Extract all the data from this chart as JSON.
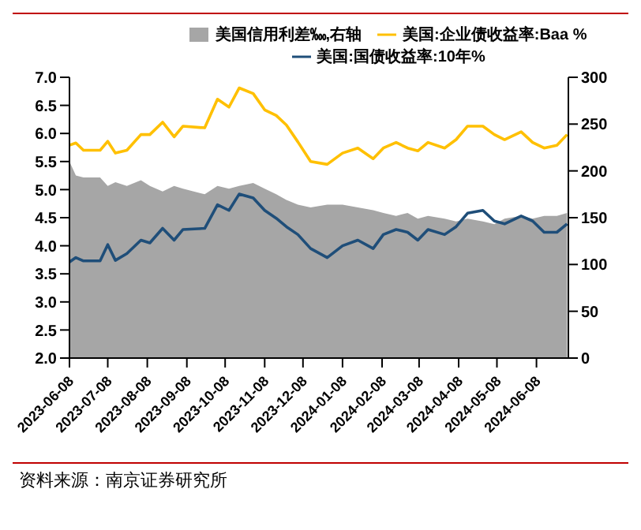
{
  "chart_data": {
    "type": "line",
    "x": [
      "2023-06-08",
      "2023-06-13",
      "2023-06-19",
      "2023-07-02",
      "2023-07-08",
      "2023-07-14",
      "2023-07-23",
      "2023-08-03",
      "2023-08-10",
      "2023-08-20",
      "2023-08-29",
      "2023-09-05",
      "2023-09-22",
      "2023-10-02",
      "2023-10-11",
      "2023-10-19",
      "2023-10-30",
      "2023-11-08",
      "2023-11-17",
      "2023-11-25",
      "2023-12-04",
      "2023-12-14",
      "2023-12-27",
      "2024-01-08",
      "2024-01-20",
      "2024-02-01",
      "2024-02-09",
      "2024-02-19",
      "2024-02-28",
      "2024-03-07",
      "2024-03-15",
      "2024-03-28",
      "2024-04-06",
      "2024-04-15",
      "2024-04-27",
      "2024-05-06",
      "2024-05-14",
      "2024-05-27",
      "2024-06-05",
      "2024-06-14",
      "2024-06-24",
      "2024-07-02"
    ],
    "series": [
      {
        "name": "美国信用利差‱,右轴",
        "type": "area",
        "axis": "y2",
        "color": "#a6a6a6",
        "values": [
          210,
          195,
          193,
          193,
          184,
          188,
          184,
          190,
          184,
          178,
          184,
          181,
          175,
          184,
          181,
          184,
          187,
          181,
          175,
          169,
          164,
          161,
          164,
          164,
          161,
          158,
          155,
          152,
          155,
          149,
          152,
          149,
          146,
          149,
          146,
          143,
          149,
          152,
          149,
          152,
          152,
          155
        ]
      },
      {
        "name": "美国:企业债收益率:Baa %",
        "color": "#ffc000",
        "values": [
          5.79,
          5.83,
          5.7,
          5.7,
          5.86,
          5.65,
          5.7,
          5.98,
          5.98,
          6.2,
          5.94,
          6.13,
          6.1,
          6.61,
          6.47,
          6.81,
          6.71,
          6.42,
          6.32,
          6.15,
          5.85,
          5.5,
          5.45,
          5.65,
          5.74,
          5.55,
          5.74,
          5.84,
          5.74,
          5.69,
          5.84,
          5.74,
          5.89,
          6.13,
          6.13,
          5.98,
          5.89,
          6.03,
          5.84,
          5.74,
          5.79,
          5.98
        ]
      },
      {
        "name": "美国:国债收益率:10年%",
        "color": "#1f4e79",
        "values": [
          3.71,
          3.79,
          3.73,
          3.73,
          4.02,
          3.74,
          3.86,
          4.1,
          4.05,
          4.31,
          4.1,
          4.29,
          4.31,
          4.73,
          4.63,
          4.92,
          4.85,
          4.63,
          4.49,
          4.34,
          4.2,
          3.95,
          3.79,
          4.0,
          4.1,
          3.95,
          4.2,
          4.29,
          4.24,
          4.1,
          4.29,
          4.2,
          4.34,
          4.58,
          4.63,
          4.44,
          4.39,
          4.53,
          4.44,
          4.24,
          4.24,
          4.39
        ]
      }
    ],
    "xlim": [
      "2023-06-08",
      "2024-07-03"
    ],
    "xticks": [
      "2023-06-08",
      "2023-07-08",
      "2023-08-08",
      "2023-09-08",
      "2023-10-08",
      "2023-11-08",
      "2023-12-08",
      "2024-01-08",
      "2024-02-08",
      "2024-03-08",
      "2024-04-08",
      "2024-05-08",
      "2024-06-08"
    ],
    "ylim": [
      2,
      7
    ],
    "yticks": [
      {
        "value": 2,
        "label": "2.0"
      },
      2.5,
      {
        "value": 3,
        "label": "3.0"
      },
      3.5,
      {
        "value": 4,
        "label": "4.0"
      },
      4.5,
      {
        "value": 5,
        "label": "5.0"
      },
      5.5,
      {
        "value": 6,
        "label": "6.0"
      },
      6.5,
      {
        "value": 7,
        "label": "7.0"
      }
    ],
    "y2lim": [
      0,
      300
    ],
    "y2ticks": [
      0,
      50,
      100,
      150,
      200,
      250,
      300
    ],
    "grid": false,
    "legend": "top",
    "marker": "none",
    "line_style": "solid",
    "annotations": [
      "资料来源：南京证券研究所"
    ]
  }
}
